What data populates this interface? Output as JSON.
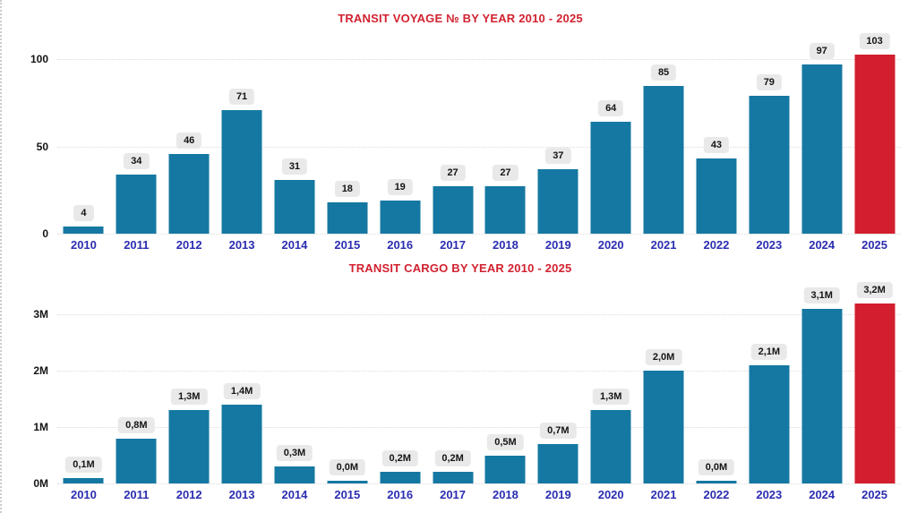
{
  "colors": {
    "bar_blue": "#1578a2",
    "bar_red": "#d21e2e",
    "title_red": "#d22230",
    "category_blue": "#2b2db0",
    "tick_black": "#141414",
    "label_box_bg": "#e9e9e9",
    "gridline": "#dcdcdc"
  },
  "chart_data": [
    {
      "type": "bar",
      "title": "TRANSIT VOYAGE № BY YEAR 2010 - 2025",
      "categories": [
        "2010",
        "2011",
        "2012",
        "2013",
        "2014",
        "2015",
        "2016",
        "2017",
        "2018",
        "2019",
        "2020",
        "2021",
        "2022",
        "2023",
        "2024",
        "2025"
      ],
      "values": [
        4,
        34,
        46,
        71,
        31,
        18,
        19,
        27,
        27,
        37,
        64,
        85,
        43,
        79,
        97,
        103
      ],
      "value_labels": [
        "4",
        "34",
        "46",
        "71",
        "31",
        "18",
        "19",
        "27",
        "27",
        "37",
        "64",
        "85",
        "43",
        "79",
        "97",
        "103"
      ],
      "highlight_last_bar": true,
      "xlabel": "",
      "ylabel": "",
      "yticks": [
        0,
        50,
        100
      ],
      "ytick_labels": [
        "0",
        "50",
        "100"
      ],
      "ylim": [
        0,
        111
      ],
      "grid": "dotted horizontal",
      "legend": "none"
    },
    {
      "type": "bar",
      "title": "TRANSIT CARGO BY YEAR 2010 - 2025",
      "categories": [
        "2010",
        "2011",
        "2012",
        "2013",
        "2014",
        "2015",
        "2016",
        "2017",
        "2018",
        "2019",
        "2020",
        "2021",
        "2022",
        "2023",
        "2024",
        "2025"
      ],
      "values": [
        0.1,
        0.8,
        1.3,
        1.4,
        0.3,
        0.0,
        0.2,
        0.2,
        0.5,
        0.7,
        1.3,
        2.0,
        0.0,
        2.1,
        3.1,
        3.2
      ],
      "value_labels": [
        "0,1M",
        "0,8M",
        "1,3M",
        "1,4M",
        "0,3M",
        "0,0M",
        "0,2M",
        "0,2M",
        "0,5M",
        "0,7M",
        "1,3M",
        "2,0M",
        "0,0M",
        "2,1M",
        "3,1M",
        "3,2M"
      ],
      "highlight_last_bar": true,
      "xlabel": "",
      "ylabel": "",
      "yticks": [
        0,
        1,
        2,
        3
      ],
      "ytick_labels": [
        "0M",
        "1M",
        "2M",
        "3M"
      ],
      "ylim": [
        0,
        3.29
      ],
      "grid": "dotted horizontal",
      "legend": "none"
    }
  ]
}
